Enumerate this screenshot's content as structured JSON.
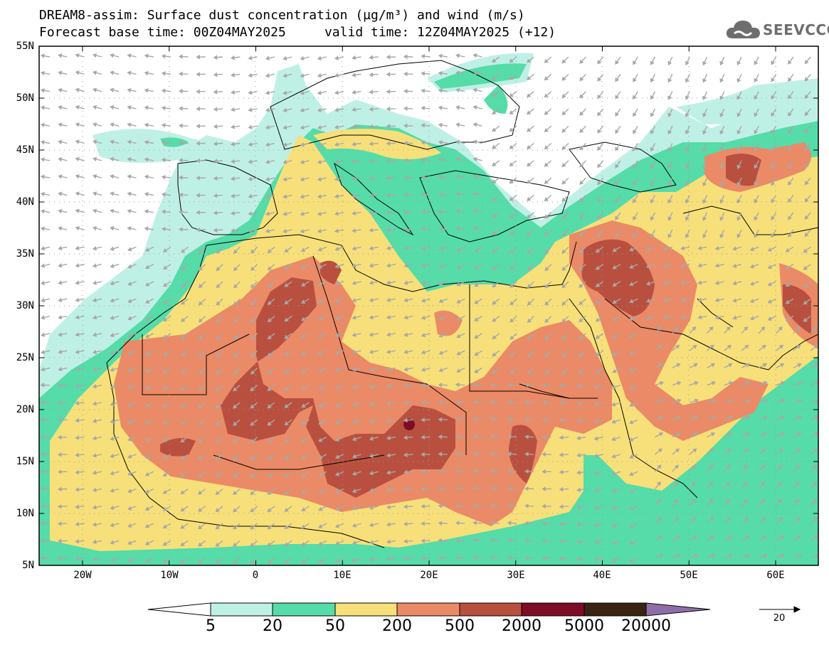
{
  "header": {
    "title_line1": "DREAM8-assim: Surface dust concentration (µg/m³) and wind (m/s)",
    "title_line2": "Forecast base time: 00Z04MAY2025     valid time: 12Z04MAY2025 (+12)"
  },
  "logo": {
    "text": "SEEVCCC",
    "icon": "cloud-icon"
  },
  "axes": {
    "lat_labels": [
      "55N",
      "50N",
      "45N",
      "40N",
      "35N",
      "30N",
      "25N",
      "20N",
      "15N",
      "10N",
      "5N"
    ],
    "lon_labels": [
      "20W",
      "10W",
      "0",
      "10E",
      "20E",
      "30E",
      "40E",
      "50E",
      "60E"
    ]
  },
  "colorbar": {
    "labels": [
      "5",
      "20",
      "50",
      "200",
      "500",
      "2000",
      "5000",
      "20000"
    ],
    "colors": [
      "#ffffff",
      "#bff0e6",
      "#55dca8",
      "#f7e07a",
      "#eb8a66",
      "#b9503f",
      "#7d0c25",
      "#3a2311",
      "#8e6ea8"
    ]
  },
  "wind_reference": {
    "label": "20"
  },
  "map_colors": {
    "ocean": "#ffffff",
    "coast": "#000000",
    "grid": "#9a9a9a",
    "wind_arrow": "#a8a8a8"
  }
}
